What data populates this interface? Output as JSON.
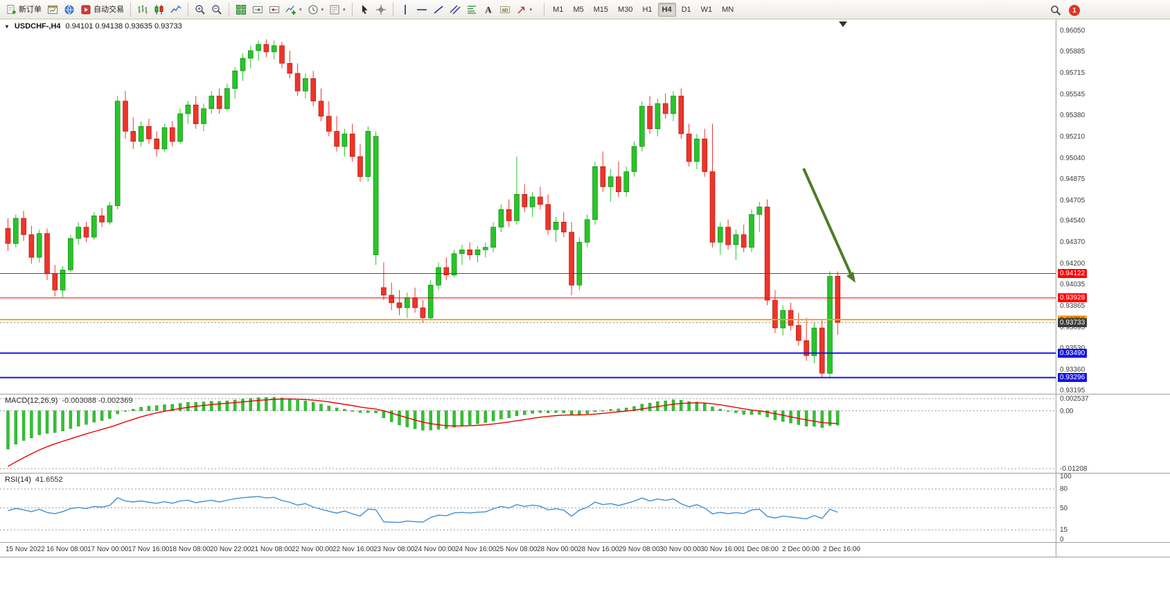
{
  "toolbar": {
    "groups": [
      {
        "name": "trade",
        "items": [
          {
            "name": "new-order",
            "icon": "doc-plus",
            "label": "新订单"
          },
          {
            "name": "charts",
            "icon": "chart-window"
          },
          {
            "name": "market-watch",
            "icon": "globe"
          },
          {
            "name": "auto-trading",
            "icon": "autotrade",
            "label": "自动交易"
          }
        ]
      },
      {
        "name": "chart-type",
        "items": [
          {
            "name": "bar-chart",
            "icon": "bars"
          },
          {
            "name": "candlestick-chart",
            "icon": "candles"
          },
          {
            "name": "line-chart",
            "icon": "linechart"
          }
        ]
      },
      {
        "name": "zoom",
        "items": [
          {
            "name": "zoom-in",
            "icon": "zoom-in"
          },
          {
            "name": "zoom-out",
            "icon": "zoom-out"
          }
        ]
      },
      {
        "name": "windows",
        "items": [
          {
            "name": "tile-windows",
            "icon": "grid"
          },
          {
            "name": "auto-scroll",
            "icon": "autoscroll"
          },
          {
            "name": "chart-shift",
            "icon": "shift"
          },
          {
            "name": "new-chart",
            "icon": "add-chart",
            "caret": true
          },
          {
            "name": "periods",
            "icon": "clock",
            "caret": true
          },
          {
            "name": "templates",
            "icon": "template",
            "caret": true
          }
        ]
      },
      {
        "name": "cursor-tools",
        "items": [
          {
            "name": "cursor",
            "icon": "cursor"
          },
          {
            "name": "crosshair",
            "icon": "crosshair"
          }
        ]
      },
      {
        "name": "draw-tools",
        "items": [
          {
            "name": "vertical-line",
            "icon": "vline"
          },
          {
            "name": "horizontal-line",
            "icon": "hline"
          },
          {
            "name": "trend-line",
            "icon": "tline"
          },
          {
            "name": "equidistant-channel",
            "icon": "channel"
          },
          {
            "name": "fibonacci",
            "icon": "fibo"
          },
          {
            "name": "text",
            "icon": "text-a"
          },
          {
            "name": "text-label",
            "icon": "label"
          },
          {
            "name": "arrows",
            "icon": "arrow",
            "caret": true
          }
        ]
      }
    ],
    "timeframes": [
      "M1",
      "M5",
      "M15",
      "M30",
      "H1",
      "H4",
      "D1",
      "W1",
      "MN"
    ],
    "active_timeframe": "H4",
    "badge": "1"
  },
  "chart": {
    "title": "USDCHF-,H4",
    "ohlc_text": "0.94101 0.94138 0.93635 0.93733"
  },
  "colors": {
    "bull": "#28c528",
    "bull_border": "#0f7a0f",
    "bear": "#ef342a",
    "bear_border": "#a31208",
    "macd_hist": "#30c430",
    "macd_signal": "#e80000",
    "rsi_line": "#3f8fd2",
    "arrow": "#4e7d28",
    "bid_line": "#808080"
  },
  "chart_data": {
    "type": "candlestick",
    "symbol": "USDCHF",
    "timeframe": "H4",
    "current_ohlc": {
      "open": "0.94101",
      "high": "0.94138",
      "low": "0.93635",
      "close": "0.93733"
    },
    "price_axis": {
      "ticks": [
        "0.96050",
        "0.95885",
        "0.95715",
        "0.95545",
        "0.95380",
        "0.95210",
        "0.95040",
        "0.94875",
        "0.94705",
        "0.94540",
        "0.94370",
        "0.94200",
        "0.94035",
        "0.93865",
        "0.93695",
        "0.93530",
        "0.93360",
        "0.93195"
      ]
    },
    "bid": {
      "price": 0.93733,
      "label": "0.93733",
      "bg": "#3c3c3c",
      "text": "#ffffff"
    },
    "levels": [
      {
        "price": 0.94122,
        "label": "0.94122",
        "color": "#ff0000",
        "text": "#ffffff",
        "thickness": 1
      },
      {
        "price": 0.93928,
        "label": "0.93928",
        "color": "#ff0000",
        "text": "#ffffff",
        "thickness": 1
      },
      {
        "price": 0.93756,
        "label": "0.93756",
        "color": "#ffa500",
        "text": "#3f2c00",
        "thickness": 2
      },
      {
        "price": 0.9349,
        "label": "0.93490",
        "color": "#1515e6",
        "text": "#ffffff",
        "thickness": 2
      },
      {
        "price": 0.93296,
        "label": "0.93296",
        "color": "#1515e6",
        "text": "#ffffff",
        "thickness": 2
      }
    ],
    "candles": [
      [
        0.9448,
        0.9456,
        0.943,
        0.9436
      ],
      [
        0.9436,
        0.9459,
        0.9433,
        0.9456
      ],
      [
        0.9456,
        0.9462,
        0.9438,
        0.9443
      ],
      [
        0.9443,
        0.945,
        0.942,
        0.9425
      ],
      [
        0.9425,
        0.9447,
        0.9421,
        0.9444
      ],
      [
        0.9444,
        0.9448,
        0.9407,
        0.9412
      ],
      [
        0.9412,
        0.9419,
        0.9394,
        0.9399
      ],
      [
        0.9399,
        0.9418,
        0.9393,
        0.9415
      ],
      [
        0.9415,
        0.9443,
        0.9413,
        0.944
      ],
      [
        0.944,
        0.9453,
        0.9435,
        0.9449
      ],
      [
        0.9449,
        0.9453,
        0.9437,
        0.9441
      ],
      [
        0.9441,
        0.9461,
        0.9439,
        0.9458
      ],
      [
        0.9458,
        0.9464,
        0.9449,
        0.9453
      ],
      [
        0.9453,
        0.9469,
        0.9451,
        0.9466
      ],
      [
        0.9466,
        0.9553,
        0.9463,
        0.9549
      ],
      [
        0.9549,
        0.9557,
        0.9519,
        0.9525
      ],
      [
        0.9525,
        0.9536,
        0.9511,
        0.9517
      ],
      [
        0.9517,
        0.9533,
        0.9513,
        0.9529
      ],
      [
        0.9529,
        0.9535,
        0.9515,
        0.9519
      ],
      [
        0.9519,
        0.9525,
        0.9505,
        0.9511
      ],
      [
        0.9511,
        0.9531,
        0.9509,
        0.9528
      ],
      [
        0.9528,
        0.9533,
        0.9513,
        0.9517
      ],
      [
        0.9517,
        0.9543,
        0.9515,
        0.9539
      ],
      [
        0.9539,
        0.9549,
        0.9531,
        0.9546
      ],
      [
        0.9546,
        0.9553,
        0.9527,
        0.9531
      ],
      [
        0.9531,
        0.9547,
        0.9525,
        0.9543
      ],
      [
        0.9543,
        0.9557,
        0.9539,
        0.9553
      ],
      [
        0.9553,
        0.9559,
        0.9539,
        0.9543
      ],
      [
        0.9543,
        0.9563,
        0.9541,
        0.9559
      ],
      [
        0.9559,
        0.9576,
        0.9551,
        0.9573
      ],
      [
        0.9573,
        0.9587,
        0.9565,
        0.9583
      ],
      [
        0.9583,
        0.9593,
        0.9575,
        0.9589
      ],
      [
        0.9589,
        0.9597,
        0.9581,
        0.9594
      ],
      [
        0.9594,
        0.9598,
        0.9584,
        0.9588
      ],
      [
        0.9588,
        0.9597,
        0.9582,
        0.9593
      ],
      [
        0.9593,
        0.9596,
        0.9575,
        0.9579
      ],
      [
        0.9579,
        0.9589,
        0.9567,
        0.9571
      ],
      [
        0.9571,
        0.9579,
        0.9553,
        0.9557
      ],
      [
        0.9557,
        0.9571,
        0.9551,
        0.9567
      ],
      [
        0.9567,
        0.9573,
        0.9545,
        0.9549
      ],
      [
        0.9549,
        0.9559,
        0.9533,
        0.9537
      ],
      [
        0.9537,
        0.9549,
        0.9521,
        0.9525
      ],
      [
        0.9525,
        0.9537,
        0.9509,
        0.9513
      ],
      [
        0.9513,
        0.9527,
        0.9505,
        0.9523
      ],
      [
        0.9523,
        0.9531,
        0.9501,
        0.9505
      ],
      [
        0.9505,
        0.9515,
        0.9485,
        0.9489
      ],
      [
        0.9489,
        0.9529,
        0.9485,
        0.9525
      ],
      [
        0.9427,
        0.9525,
        0.9419,
        0.9521
      ],
      [
        0.9401,
        0.9421,
        0.9391,
        0.9395
      ],
      [
        0.9395,
        0.9405,
        0.9383,
        0.9389
      ],
      [
        0.9389,
        0.9399,
        0.9379,
        0.9385
      ],
      [
        0.9385,
        0.9397,
        0.9377,
        0.9393
      ],
      [
        0.9393,
        0.9401,
        0.9381,
        0.9385
      ],
      [
        0.9385,
        0.9391,
        0.9373,
        0.9377
      ],
      [
        0.9377,
        0.9407,
        0.9375,
        0.9403
      ],
      [
        0.9403,
        0.9421,
        0.9399,
        0.9417
      ],
      [
        0.9417,
        0.9425,
        0.9407,
        0.9411
      ],
      [
        0.9411,
        0.9431,
        0.9409,
        0.9428
      ],
      [
        0.9428,
        0.9435,
        0.9419,
        0.9431
      ],
      [
        0.9431,
        0.9437,
        0.9423,
        0.9427
      ],
      [
        0.9427,
        0.9434,
        0.9421,
        0.9431
      ],
      [
        0.9431,
        0.9437,
        0.9425,
        0.9433
      ],
      [
        0.9433,
        0.9453,
        0.9429,
        0.9449
      ],
      [
        0.9449,
        0.9467,
        0.9445,
        0.9463
      ],
      [
        0.9463,
        0.9471,
        0.9449,
        0.9454
      ],
      [
        0.9454,
        0.9505,
        0.9451,
        0.9475
      ],
      [
        0.9475,
        0.9483,
        0.9461,
        0.9465
      ],
      [
        0.9465,
        0.9477,
        0.9457,
        0.9473
      ],
      [
        0.9473,
        0.9481,
        0.9463,
        0.9467
      ],
      [
        0.9467,
        0.9475,
        0.9443,
        0.9447
      ],
      [
        0.9447,
        0.9457,
        0.9437,
        0.9453
      ],
      [
        0.9453,
        0.9461,
        0.9441,
        0.9445
      ],
      [
        0.9445,
        0.9453,
        0.9395,
        0.9403
      ],
      [
        0.9403,
        0.9441,
        0.9399,
        0.9437
      ],
      [
        0.9437,
        0.9459,
        0.9433,
        0.9455
      ],
      [
        0.9455,
        0.9501,
        0.9451,
        0.9497
      ],
      [
        0.9497,
        0.9509,
        0.9477,
        0.9481
      ],
      [
        0.9481,
        0.9495,
        0.9469,
        0.9489
      ],
      [
        0.9489,
        0.9501,
        0.9473,
        0.9477
      ],
      [
        0.9477,
        0.9497,
        0.9473,
        0.9493
      ],
      [
        0.9493,
        0.9517,
        0.9489,
        0.9513
      ],
      [
        0.9513,
        0.9549,
        0.9509,
        0.9545
      ],
      [
        0.9545,
        0.9553,
        0.9523,
        0.9527
      ],
      [
        0.9527,
        0.9551,
        0.9521,
        0.9547
      ],
      [
        0.9547,
        0.9555,
        0.9535,
        0.9539
      ],
      [
        0.9539,
        0.9557,
        0.9533,
        0.9553
      ],
      [
        0.9553,
        0.9559,
        0.9519,
        0.9523
      ],
      [
        0.9523,
        0.9531,
        0.9497,
        0.9501
      ],
      [
        0.9501,
        0.9523,
        0.9495,
        0.9519
      ],
      [
        0.9519,
        0.9527,
        0.9489,
        0.9493
      ],
      [
        0.9493,
        0.9531,
        0.9433,
        0.9437
      ],
      [
        0.9437,
        0.9453,
        0.9427,
        0.9449
      ],
      [
        0.9449,
        0.9455,
        0.9431,
        0.9435
      ],
      [
        0.9435,
        0.9447,
        0.9423,
        0.9443
      ],
      [
        0.9443,
        0.9451,
        0.9429,
        0.9433
      ],
      [
        0.9433,
        0.9463,
        0.9429,
        0.9459
      ],
      [
        0.9459,
        0.9469,
        0.9445,
        0.9465
      ],
      [
        0.9465,
        0.9471,
        0.9387,
        0.9391
      ],
      [
        0.9391,
        0.9399,
        0.9365,
        0.9369
      ],
      [
        0.9369,
        0.9387,
        0.9363,
        0.9383
      ],
      [
        0.9383,
        0.9389,
        0.9367,
        0.9371
      ],
      [
        0.9371,
        0.9381,
        0.9355,
        0.9359
      ],
      [
        0.9359,
        0.9377,
        0.9343,
        0.9347
      ],
      [
        0.9347,
        0.9373,
        0.9341,
        0.9369
      ],
      [
        0.9369,
        0.9375,
        0.93296,
        0.9333
      ],
      [
        0.9333,
        0.9414,
        0.93296,
        0.941
      ],
      [
        0.94101,
        0.94138,
        0.93635,
        0.93733
      ]
    ],
    "time_labels": [
      "15 Nov 2022",
      "16 Nov 08:00",
      "17 Nov 00:00",
      "17 Nov 16:00",
      "18 Nov 08:00",
      "20 Nov 22:00",
      "21 Nov 08:00",
      "22 Nov 00:00",
      "22 Nov 16:00",
      "23 Nov 08:00",
      "24 Nov 00:00",
      "24 Nov 16:00",
      "25 Nov 08:00",
      "28 Nov 00:00",
      "28 Nov 16:00",
      "29 Nov 08:00",
      "30 Nov 00:00",
      "30 Nov 16:00",
      "1 Dec 08:00",
      "2 Dec 00:00",
      "2 Dec 16:00"
    ],
    "indicators": {
      "macd": {
        "label": "MACD(12,26,9)",
        "values_text": "-0.003088 -0.002369",
        "main_value": -0.003088,
        "signal_value": -0.002369,
        "params": {
          "fast": 12,
          "slow": 26,
          "signal": 9
        },
        "axis": [
          {
            "value": 0.002537,
            "label": "0.002537"
          },
          {
            "value": 0,
            "label": "0.00"
          },
          {
            "value": -0.01208,
            "label": "-0.01208"
          }
        ]
      },
      "rsi": {
        "label": "RSI(14)",
        "value_text": "41.6552",
        "value": 41.6552,
        "period": 14,
        "levels": [
          80,
          50,
          15
        ],
        "axis": [
          {
            "value": 100,
            "label": "100"
          },
          {
            "value": 80,
            "label": "80"
          },
          {
            "value": 50,
            "label": "50"
          },
          {
            "value": 15,
            "label": "15"
          },
          {
            "value": 0,
            "label": "0"
          }
        ]
      }
    },
    "annotation": {
      "type": "arrow-down-right",
      "meaning": "bearish pressure toward 0.94122 level"
    }
  }
}
